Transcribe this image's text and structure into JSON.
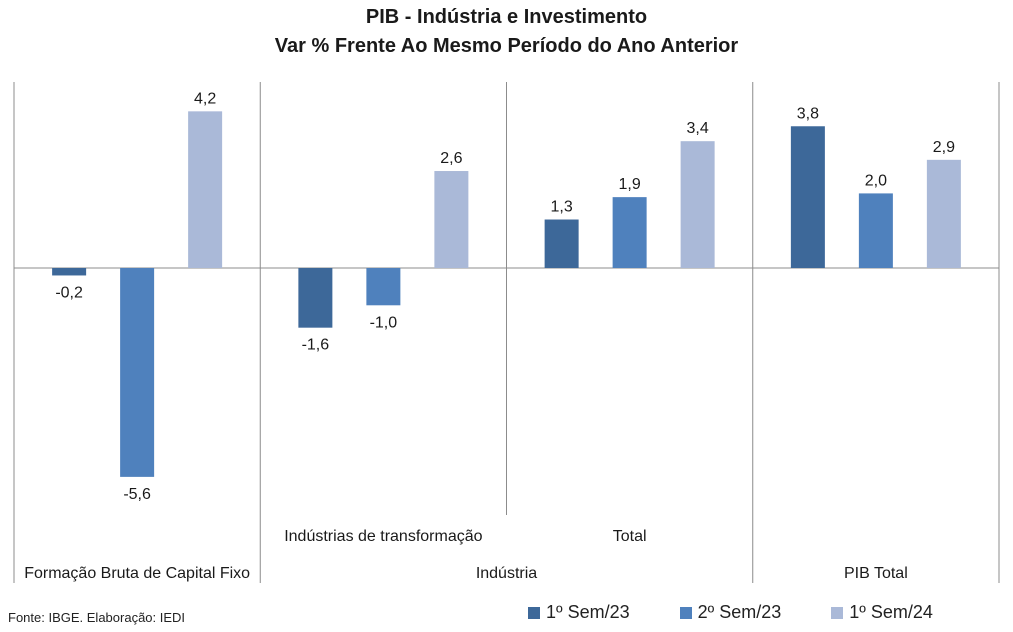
{
  "chart_data": {
    "type": "bar",
    "title": "PIB  - Indústria e Investimento",
    "subtitle": "Var % Frente Ao Mesmo Período do Ano Anterior",
    "categories": [
      "Formação Bruta de Capital Fixo",
      "Indústrias de transformação",
      "Total",
      "PIB Total"
    ],
    "category_groups": [
      {
        "label": "Formação Bruta de Capital Fixo",
        "members": [
          "Formação Bruta de Capital Fixo"
        ]
      },
      {
        "label": "Indústria",
        "members": [
          "Indústrias de transformação",
          "Total"
        ]
      },
      {
        "label": "PIB Total",
        "members": [
          "PIB Total"
        ]
      }
    ],
    "series": [
      {
        "name": "1º Sem/23",
        "color": "#3d6899",
        "values": [
          -0.2,
          -1.6,
          1.3,
          3.8
        ],
        "labels": [
          "-0,2",
          "-1,6",
          "1,3",
          "3,8"
        ]
      },
      {
        "name": "2º Sem/23",
        "color": "#4f81bd",
        "values": [
          -5.6,
          -1.0,
          1.9,
          2.0
        ],
        "labels": [
          "-5,6",
          "-1,0",
          "1,9",
          "2,0"
        ]
      },
      {
        "name": "1º Sem/24",
        "color": "#aab9d8",
        "values": [
          4.2,
          2.6,
          3.4,
          2.9
        ],
        "labels": [
          "4,2",
          "2,6",
          "3,4",
          "2,9"
        ]
      }
    ],
    "ylim": [
      -6.5,
      5.0
    ],
    "grid": false,
    "legend_position": "bottom-right"
  },
  "source_note": "Fonte: IBGE. Elaboração: IEDI"
}
